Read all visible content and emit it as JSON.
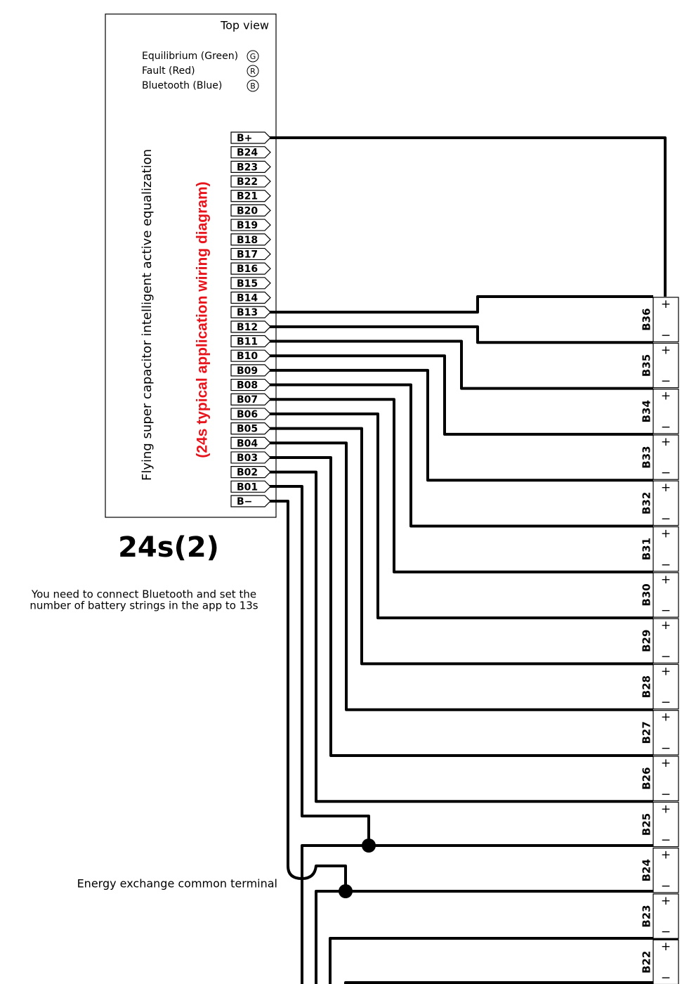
{
  "header": {
    "view": "Top view"
  },
  "indicators": [
    {
      "label": "Equilibrium (Green)",
      "symbol": "G"
    },
    {
      "label": "Fault  (Red)",
      "symbol": "R"
    },
    {
      "label": "Bluetooth (Blue)",
      "symbol": "B"
    }
  ],
  "module": {
    "name": "Flying super capacitor intelligent active equalization",
    "subtitle": "(24s typical application wiring diagram)"
  },
  "pins": [
    "B+",
    "B24",
    "B23",
    "B22",
    "B21",
    "B20",
    "B19",
    "B18",
    "B17",
    "B16",
    "B15",
    "B14",
    "B13",
    "B12",
    "B11",
    "B10",
    "B09",
    "B08",
    "B07",
    "B06",
    "B05",
    "B04",
    "B03",
    "B02",
    "B01",
    "B−"
  ],
  "batteries": [
    "B36",
    "B35",
    "B34",
    "B33",
    "B32",
    "B31",
    "B30",
    "B29",
    "B28",
    "B27",
    "B26",
    "B25",
    "B24",
    "B23",
    "B22"
  ],
  "terminal_signs": {
    "positive": "+",
    "negative": "−"
  },
  "model": "24s(2)",
  "note": [
    "You need to connect Bluetooth and set the",
    "number of battery strings in the app to 13s"
  ],
  "common_label": "Energy exchange common terminal"
}
